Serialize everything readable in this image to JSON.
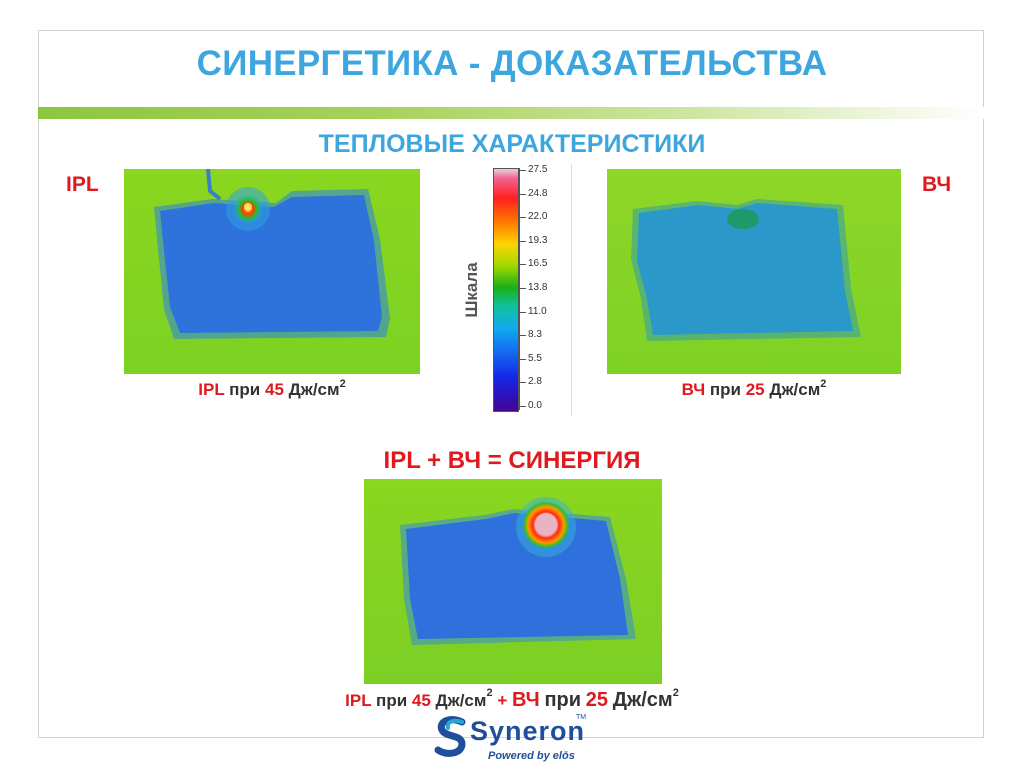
{
  "slide": {
    "title": "СИНЕРГЕТИКА - ДОКАЗАТЕЛЬСТВА",
    "subtitle": "ТЕПЛОВЫЕ ХАРАКТЕРИСТИКИ",
    "accent_color": "#3ea6de",
    "highlight_color": "#e0191f"
  },
  "left_panel": {
    "label": "IPL",
    "caption": {
      "device": "IPL",
      "word": "при",
      "value": "45",
      "unit": "Дж/см",
      "exp": "2"
    }
  },
  "right_panel": {
    "label": "ВЧ",
    "caption": {
      "device": "ВЧ",
      "word": "при",
      "value": "25",
      "unit": "Дж/см",
      "exp": "2"
    }
  },
  "scale": {
    "caption": "Шкала",
    "ticks": [
      "27.5",
      "24.8",
      "22.0",
      "19.3",
      "16.5",
      "13.8",
      "11.0",
      "8.3",
      "5.5",
      "2.8",
      "0.0"
    ]
  },
  "combined": {
    "heading": "IPL + ВЧ = СИНЕРГИЯ",
    "caption": {
      "device1": "IPL",
      "word1": "при",
      "value1": "45",
      "unit1": "Дж/см",
      "exp1": "2",
      "plus": "+",
      "device2": "ВЧ",
      "word2": "при",
      "value2": "25",
      "unit2": "Дж/см",
      "exp2": "2"
    }
  },
  "logo": {
    "brand": "Syneron",
    "tagline": "Powered by elōs",
    "tm": "TM"
  }
}
